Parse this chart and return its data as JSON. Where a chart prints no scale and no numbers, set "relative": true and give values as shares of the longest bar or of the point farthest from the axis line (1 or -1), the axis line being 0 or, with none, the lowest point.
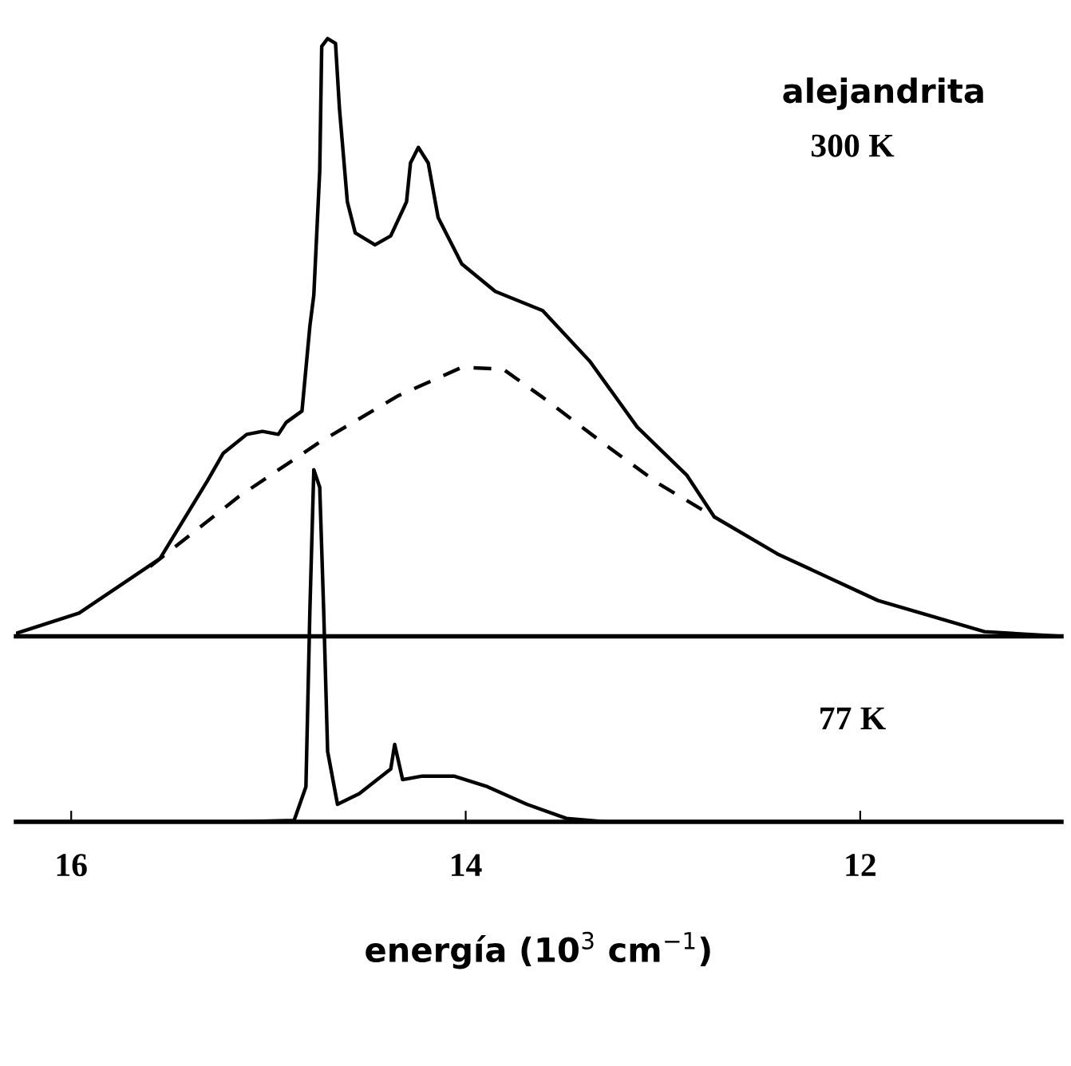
{
  "chart_data": [
    {
      "type": "line",
      "relative": true,
      "xlim": [
        16.28,
        10.98
      ],
      "tick_labels": false,
      "annotations": [
        "alejandrita",
        "300 K"
      ],
      "line_style": "solid",
      "marker": "none",
      "series": [
        {
          "color": "#000000",
          "x": [
            16.28,
            15.96,
            15.55,
            15.31,
            15.23,
            15.11,
            15.03,
            14.95,
            14.91,
            14.83,
            14.79,
            14.77,
            14.74,
            14.73,
            14.7,
            14.66,
            14.64,
            14.6,
            14.56,
            14.46,
            14.38,
            14.3,
            14.28,
            14.24,
            14.19,
            14.14,
            14.02,
            13.85,
            13.61,
            13.37,
            13.13,
            12.88,
            12.74,
            12.42,
            11.91,
            11.37,
            10.98
          ],
          "values": [
            0.005,
            0.039,
            0.13,
            0.26,
            0.306,
            0.338,
            0.343,
            0.338,
            0.358,
            0.377,
            0.519,
            0.571,
            0.779,
            0.987,
            1.0,
            0.992,
            0.883,
            0.727,
            0.675,
            0.655,
            0.67,
            0.727,
            0.792,
            0.818,
            0.792,
            0.701,
            0.623,
            0.577,
            0.545,
            0.46,
            0.35,
            0.27,
            0.2,
            0.138,
            0.06,
            0.008,
            0.0
          ]
        },
        {
          "color": "#000000",
          "line_style": "dashed",
          "x": [
            15.6,
            15.15,
            14.74,
            14.34,
            14.02,
            13.81,
            13.61,
            13.29,
            13.02,
            12.74
          ],
          "values": [
            0.117,
            0.234,
            0.325,
            0.403,
            0.45,
            0.447,
            0.4,
            0.32,
            0.255,
            0.2
          ]
        }
      ]
    },
    {
      "type": "line",
      "relative": true,
      "xlim": [
        16.28,
        10.98
      ],
      "xticks": [
        16,
        14,
        12
      ],
      "tick_labels": "x",
      "xlabel": "energía (10$^{3}$ cm$^{−1}$)",
      "annotations": [
        "77 K"
      ],
      "line_style": "solid",
      "marker": "none",
      "series": [
        {
          "color": "#000000",
          "x": [
            16.28,
            15.15,
            14.87,
            14.81,
            14.79,
            14.77,
            14.74,
            14.72,
            14.7,
            14.65,
            14.54,
            14.38,
            14.36,
            14.32,
            14.22,
            14.06,
            13.89,
            13.69,
            13.49,
            13.29,
            10.98
          ],
          "values": [
            0,
            0,
            0.004,
            0.1,
            0.6,
            1.0,
            0.95,
            0.6,
            0.2,
            0.05,
            0.08,
            0.15,
            0.22,
            0.12,
            0.13,
            0.13,
            0.1,
            0.05,
            0.01,
            0,
            0
          ]
        }
      ]
    }
  ]
}
